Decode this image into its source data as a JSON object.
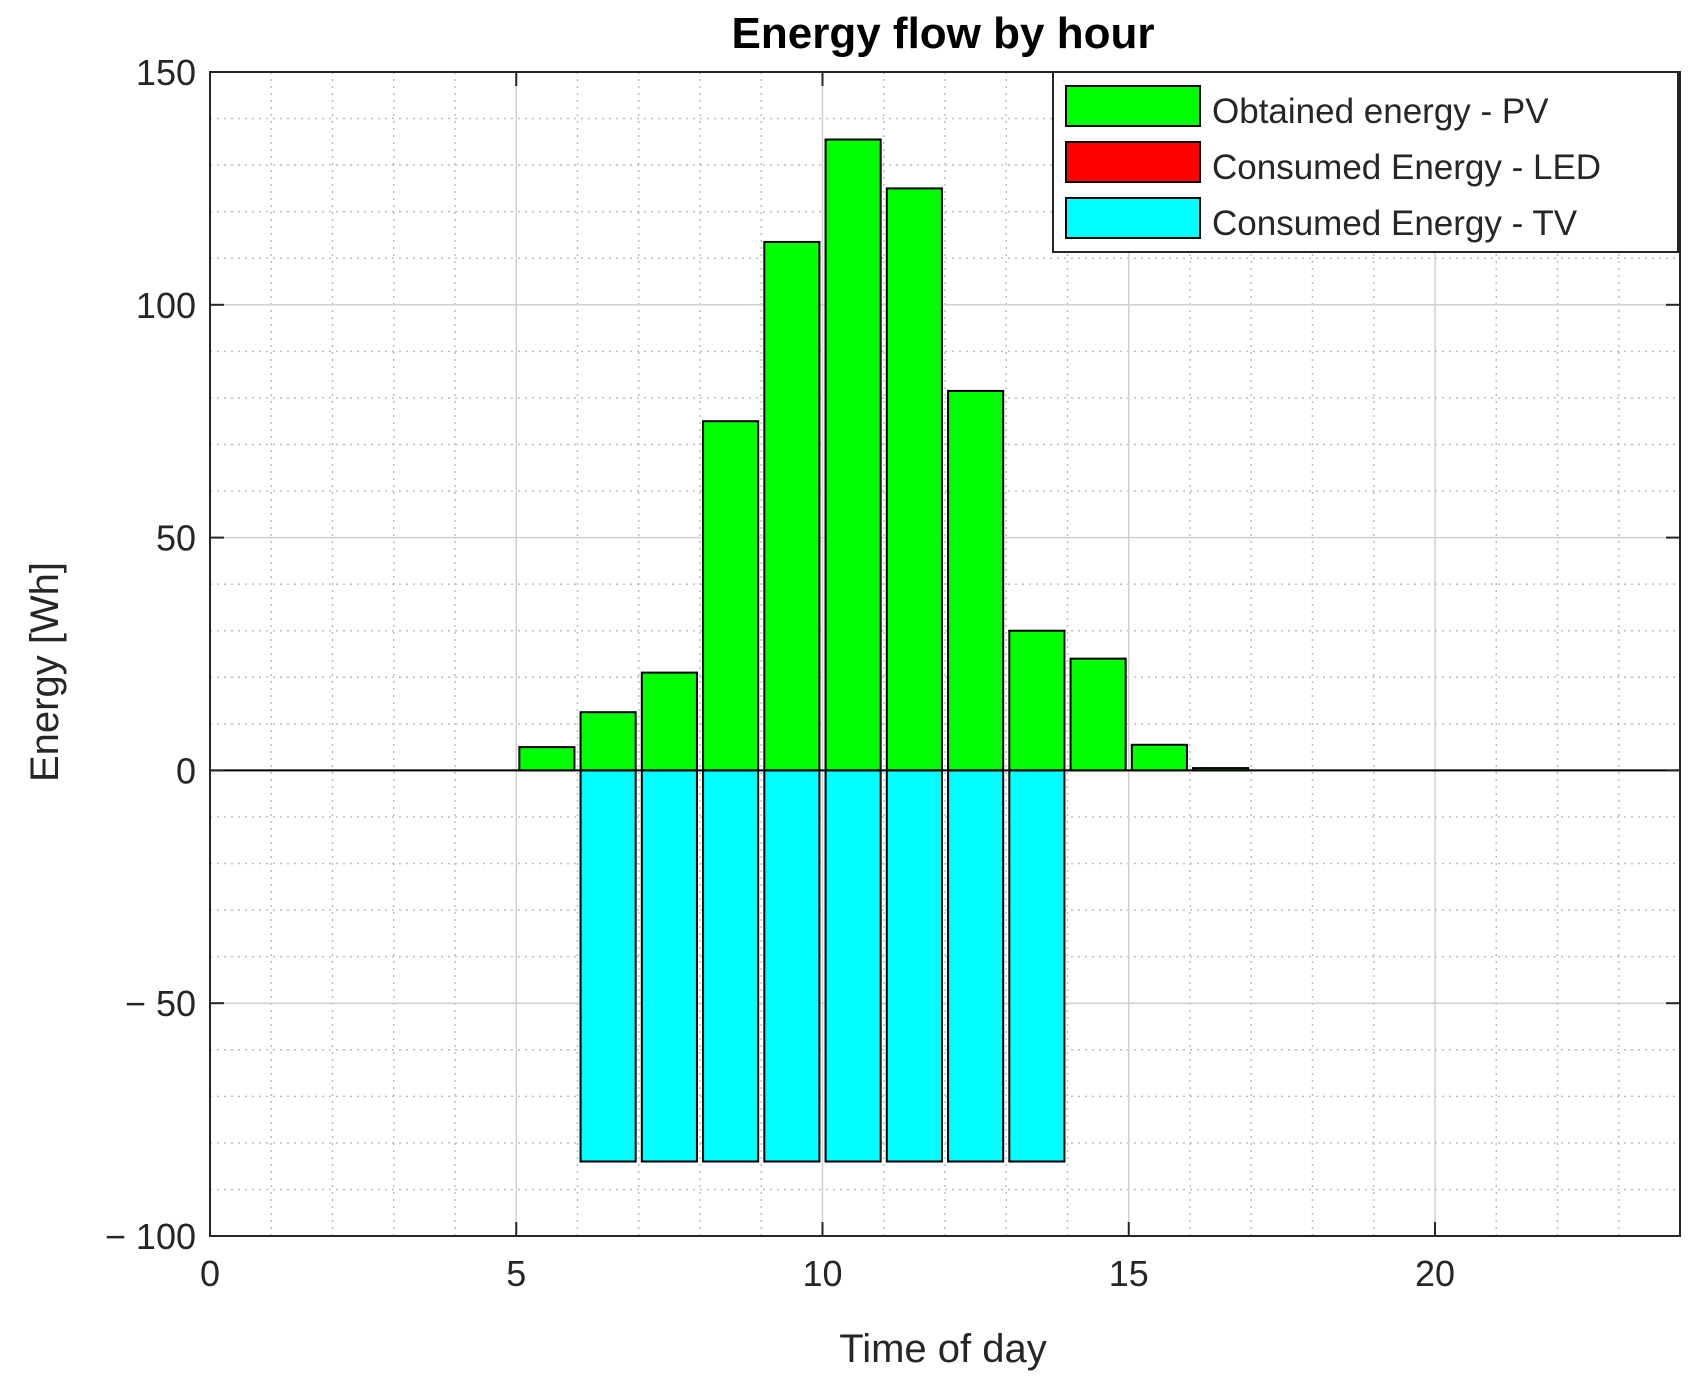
{
  "chart_data": {
    "type": "bar",
    "title": "Energy flow by hour",
    "xlabel": "Time of day",
    "ylabel": "Energy [Wh]",
    "xlim": [
      0,
      24
    ],
    "ylim": [
      -100,
      150
    ],
    "xticks": [
      0,
      5,
      10,
      15,
      20
    ],
    "yticks": [
      -100,
      -50,
      0,
      50,
      100,
      150
    ],
    "xtick_labels": [
      "0",
      "5",
      "10",
      "15",
      "20"
    ],
    "ytick_labels": [
      "− 100",
      "− 50",
      "0",
      "50",
      "100",
      "150"
    ],
    "grid": true,
    "minor_grid": true,
    "legend_position": "top-right",
    "hours": [
      0,
      1,
      2,
      3,
      4,
      5,
      6,
      7,
      8,
      9,
      10,
      11,
      12,
      13,
      14,
      15,
      16,
      17,
      18,
      19,
      20,
      21,
      22,
      23
    ],
    "series": [
      {
        "name": "Obtained energy - PV",
        "color": "#00ff00",
        "values": [
          0,
          0,
          0,
          0,
          0,
          5,
          12.5,
          21,
          75,
          113.5,
          135.5,
          125,
          81.5,
          30,
          24,
          5.5,
          0.5,
          0,
          0,
          0,
          0,
          0,
          0,
          0
        ]
      },
      {
        "name": "Consumed Energy - LED",
        "color": "#ff0000",
        "values": [
          0,
          0,
          0,
          0,
          0,
          0,
          0,
          0,
          0,
          0,
          0,
          0,
          0,
          0,
          0,
          0,
          0,
          0,
          0,
          0,
          0,
          0,
          0,
          0
        ]
      },
      {
        "name": "Consumed Energy - TV",
        "color": "#00ffff",
        "values": [
          0,
          0,
          0,
          0,
          0,
          0,
          -84,
          -84,
          -84,
          -84,
          -84,
          -84,
          -84,
          -84,
          0,
          0,
          0,
          0,
          0,
          0,
          0,
          0,
          0,
          0
        ]
      }
    ]
  }
}
